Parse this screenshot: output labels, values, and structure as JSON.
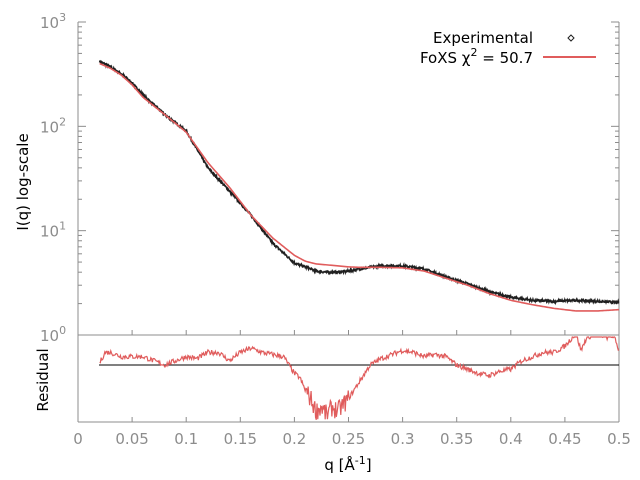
{
  "chart_data": {
    "type": "line",
    "ylabel": "I(q) log-scale",
    "xlabel": "q [Å",
    "xlabel_sup": "-1",
    "xlabel_end": "]",
    "residual_label": "Residual",
    "xlim": [
      0,
      0.5
    ],
    "ylim": [
      1,
      1000
    ],
    "yscale": "log",
    "x_ticks": [
      "0",
      "0.05",
      "0.1",
      "0.15",
      "0.2",
      "0.25",
      "0.3",
      "0.35",
      "0.4",
      "0.45",
      "0.5"
    ],
    "y_ticks": [
      {
        "base": "10",
        "exp": "0",
        "value": 1
      },
      {
        "base": "10",
        "exp": "1",
        "value": 10
      },
      {
        "base": "10",
        "exp": "2",
        "value": 100
      },
      {
        "base": "10",
        "exp": "3",
        "value": 1000
      }
    ],
    "legend": {
      "placement": "top-right",
      "experimental": "Experimental",
      "fit_prefix": "FoXS χ",
      "fit_sup": "2",
      "fit_suffix": " = 50.7"
    },
    "colors": {
      "experimental": "#202020",
      "fit": "#e05c5c",
      "axis": "#8c8c8c"
    },
    "series": [
      {
        "name": "Experimental",
        "x": [
          0.02,
          0.03,
          0.04,
          0.05,
          0.06,
          0.08,
          0.1,
          0.12,
          0.14,
          0.16,
          0.18,
          0.2,
          0.21,
          0.22,
          0.23,
          0.24,
          0.25,
          0.26,
          0.28,
          0.3,
          0.32,
          0.34,
          0.36,
          0.38,
          0.4,
          0.42,
          0.44,
          0.46,
          0.48,
          0.5
        ],
        "values": [
          420,
          370,
          320,
          260,
          200,
          130,
          90,
          40,
          24,
          14,
          7.6,
          4.9,
          4.5,
          4.1,
          4.0,
          4.0,
          4.1,
          4.3,
          4.6,
          4.6,
          4.3,
          3.6,
          3.1,
          2.6,
          2.3,
          2.15,
          2.1,
          2.15,
          2.1,
          2.05
        ]
      },
      {
        "name": "FoXS χ2 = 50.7",
        "x": [
          0.02,
          0.03,
          0.04,
          0.05,
          0.06,
          0.08,
          0.1,
          0.12,
          0.14,
          0.16,
          0.18,
          0.2,
          0.21,
          0.22,
          0.23,
          0.24,
          0.25,
          0.26,
          0.28,
          0.3,
          0.32,
          0.34,
          0.36,
          0.38,
          0.4,
          0.42,
          0.44,
          0.46,
          0.48,
          0.5
        ],
        "values": [
          400,
          360,
          310,
          250,
          190,
          130,
          88,
          45,
          26,
          14,
          8.5,
          5.8,
          5.1,
          4.8,
          4.7,
          4.6,
          4.5,
          4.45,
          4.45,
          4.4,
          4.1,
          3.5,
          3.0,
          2.5,
          2.15,
          1.95,
          1.8,
          1.7,
          1.7,
          1.75
        ]
      }
    ],
    "residual": {
      "name": "Residual",
      "baseline": 0,
      "x": [
        0.02,
        0.025,
        0.03,
        0.04,
        0.05,
        0.06,
        0.07,
        0.08,
        0.09,
        0.1,
        0.11,
        0.12,
        0.13,
        0.14,
        0.15,
        0.16,
        0.17,
        0.18,
        0.19,
        0.2,
        0.205,
        0.21,
        0.215,
        0.22,
        0.225,
        0.23,
        0.235,
        0.24,
        0.25,
        0.26,
        0.27,
        0.28,
        0.29,
        0.3,
        0.31,
        0.32,
        0.33,
        0.34,
        0.35,
        0.36,
        0.37,
        0.38,
        0.39,
        0.4,
        0.41,
        0.42,
        0.43,
        0.44,
        0.45,
        0.455,
        0.46,
        0.465,
        0.47,
        0.48,
        0.49,
        0.495,
        0.5
      ],
      "values": [
        0.05,
        0.3,
        0.3,
        0.2,
        0.2,
        0.2,
        0.1,
        0.0,
        0.1,
        0.2,
        0.15,
        0.3,
        0.3,
        0.1,
        0.3,
        0.4,
        0.3,
        0.25,
        0.2,
        -0.2,
        -0.3,
        -0.6,
        -0.8,
        -1.1,
        -1.0,
        -1.2,
        -1.0,
        -1.1,
        -0.8,
        -0.4,
        0.0,
        0.15,
        0.25,
        0.35,
        0.3,
        0.2,
        0.25,
        0.2,
        0.0,
        -0.1,
        -0.2,
        -0.25,
        -0.15,
        -0.1,
        0.1,
        0.2,
        0.3,
        0.3,
        0.45,
        0.6,
        0.75,
        0.35,
        0.65,
        0.75,
        0.65,
        0.7,
        0.35
      ]
    }
  }
}
